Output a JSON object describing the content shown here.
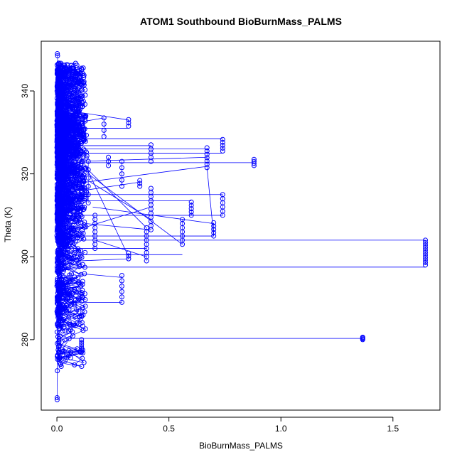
{
  "chart_data": {
    "type": "scatter",
    "title": "ATOM1 Southbound BioBurnMass_PALMS",
    "xlabel": "BioBurnMass_PALMS",
    "ylabel": "Theta (K)",
    "xlim": [
      -0.07,
      1.71
    ],
    "ylim": [
      263,
      352
    ],
    "xticks": [
      0.0,
      0.5,
      1.0,
      1.5
    ],
    "xtick_labels": [
      "0.0",
      "0.5",
      "1.0",
      "1.5"
    ],
    "yticks": [
      280,
      300,
      320,
      340
    ],
    "ytick_labels": [
      "280",
      "300",
      "320",
      "340"
    ],
    "marker_color": "#0000ff",
    "marker": "open-circle",
    "connect_points": true,
    "grid": false,
    "legend": "none",
    "outlier_series": [
      {
        "x": 1.365,
        "y": [
          280.0,
          280.2,
          280.4,
          280.6
        ]
      },
      {
        "x": 1.645,
        "y": [
          298.0,
          298.6,
          299.2,
          299.8,
          300.4,
          301.0,
          301.6,
          302.2,
          302.8,
          303.4,
          304.0
        ]
      },
      {
        "x": 0.88,
        "y": [
          322.0,
          322.5,
          323.0,
          323.5
        ]
      },
      {
        "x": 0.74,
        "y": [
          325.5,
          326.2,
          326.9,
          327.6,
          328.3
        ]
      },
      {
        "x": 0.74,
        "y": [
          310.0,
          311.0,
          312.0,
          313.0,
          314.0,
          315.0
        ]
      },
      {
        "x": 0.7,
        "y": [
          305.0,
          305.8,
          306.6,
          307.4,
          308.2
        ]
      },
      {
        "x": 0.67,
        "y": [
          321.5,
          322.3,
          323.1,
          323.9,
          324.7,
          325.5,
          326.3
        ]
      },
      {
        "x": 0.6,
        "y": [
          310.0,
          310.8,
          311.6,
          312.4,
          313.2
        ]
      },
      {
        "x": 0.56,
        "y": [
          303.0,
          304.0,
          305.0,
          306.0,
          307.0,
          308.0,
          309.0
        ]
      },
      {
        "x": 0.42,
        "y": [
          323.0,
          324.0,
          325.0,
          326.0,
          327.0
        ]
      },
      {
        "x": 0.42,
        "y": [
          306.5,
          307.5,
          308.5,
          309.5,
          310.5,
          311.5,
          312.5,
          313.5,
          314.5,
          315.5,
          316.5
        ]
      },
      {
        "x": 0.4,
        "y": [
          299.0,
          300.0,
          301.0,
          302.0,
          303.0,
          304.0,
          305.0,
          306.0,
          307.0
        ]
      },
      {
        "x": 0.37,
        "y": [
          317.0,
          317.7,
          318.4
        ]
      },
      {
        "x": 0.32,
        "y": [
          331.5,
          332.3,
          333.1
        ]
      },
      {
        "x": 0.32,
        "y": [
          299.5,
          300.2,
          300.9
        ]
      },
      {
        "x": 0.29,
        "y": [
          289.0,
          290.3,
          291.6,
          292.9,
          294.2,
          295.5
        ]
      },
      {
        "x": 0.29,
        "y": [
          317.0,
          318.5,
          320.0,
          321.5,
          323.0
        ]
      },
      {
        "x": 0.23,
        "y": [
          322.0,
          323.0,
          324.0
        ]
      },
      {
        "x": 0.21,
        "y": [
          329.0,
          330.5,
          332.0,
          333.5
        ]
      },
      {
        "x": 0.11,
        "y": [
          277.0,
          277.6,
          278.2,
          278.8,
          279.4,
          280.0
        ]
      },
      {
        "x": 0.17,
        "y": [
          302.0,
          303.0,
          304.0,
          305.0,
          306.0,
          307.0,
          308.0,
          309.0,
          310.0
        ]
      },
      {
        "x": 0.14,
        "y": [
          313.0,
          315.0,
          317.0,
          319.0,
          321.0,
          323.0
        ]
      }
    ],
    "dense_cluster": {
      "x_range": [
        0.0,
        0.14
      ],
      "y_range": [
        265.5,
        349
      ],
      "approx_points": 2200
    },
    "connector_lines": [
      [
        [
          0.05,
          280.3
        ],
        [
          1.365,
          280.3
        ]
      ],
      [
        [
          0.05,
          304.0
        ],
        [
          1.645,
          304.0
        ]
      ],
      [
        [
          0.06,
          297.5
        ],
        [
          1.645,
          297.5
        ]
      ],
      [
        [
          0.05,
          322.7
        ],
        [
          0.88,
          322.7
        ]
      ],
      [
        [
          0.07,
          325.0
        ],
        [
          0.74,
          325.0
        ]
      ],
      [
        [
          0.06,
          328.5
        ],
        [
          0.74,
          328.5
        ]
      ],
      [
        [
          0.08,
          310.0
        ],
        [
          0.74,
          310.0
        ]
      ],
      [
        [
          0.06,
          305.0
        ],
        [
          0.7,
          305.0
        ]
      ],
      [
        [
          0.08,
          326.0
        ],
        [
          0.67,
          326.0
        ]
      ],
      [
        [
          0.1,
          317.8
        ],
        [
          0.67,
          321.8
        ]
      ],
      [
        [
          0.05,
          315.0
        ],
        [
          0.74,
          315.0
        ]
      ],
      [
        [
          0.1,
          300.5
        ],
        [
          0.56,
          300.5
        ]
      ],
      [
        [
          0.04,
          302.0
        ],
        [
          0.4,
          302.0
        ]
      ],
      [
        [
          0.06,
          289.0
        ],
        [
          0.29,
          289.0
        ]
      ],
      [
        [
          0.05,
          332.0
        ],
        [
          0.21,
          333.5
        ]
      ],
      [
        [
          0.08,
          335.0
        ],
        [
          0.32,
          333.0
        ]
      ],
      [
        [
          0.09,
          331.0
        ],
        [
          0.32,
          331.0
        ]
      ],
      [
        [
          0.05,
          326.8
        ],
        [
          0.42,
          326.8
        ]
      ],
      [
        [
          0.1,
          323.0
        ],
        [
          0.67,
          324.0
        ]
      ],
      [
        [
          0.07,
          277.5
        ],
        [
          0.11,
          277.5
        ]
      ],
      [
        [
          0.14,
          320.0
        ],
        [
          0.56,
          303.0
        ]
      ],
      [
        [
          0.12,
          322.0
        ],
        [
          0.4,
          307.0
        ]
      ],
      [
        [
          0.11,
          324.0
        ],
        [
          0.32,
          300.0
        ]
      ],
      [
        [
          0.15,
          318.0
        ],
        [
          0.42,
          309.0
        ]
      ],
      [
        [
          0.16,
          312.0
        ],
        [
          0.7,
          308.0
        ]
      ],
      [
        [
          0.09,
          313.5
        ],
        [
          0.6,
          313.5
        ]
      ],
      [
        [
          0.13,
          308.0
        ],
        [
          0.42,
          306.5
        ]
      ],
      [
        [
          0.12,
          316.0
        ],
        [
          0.37,
          318.0
        ]
      ],
      [
        [
          0.67,
          321.5
        ],
        [
          0.7,
          305.0
        ]
      ],
      [
        [
          0.09,
          296.0
        ],
        [
          0.29,
          295.0
        ]
      ],
      [
        [
          0.1,
          299.0
        ],
        [
          0.32,
          299.5
        ]
      ],
      [
        [
          0.17,
          304.0
        ],
        [
          0.4,
          300.0
        ]
      ],
      [
        [
          0.06,
          306.0
        ],
        [
          0.42,
          312.0
        ]
      ]
    ]
  }
}
